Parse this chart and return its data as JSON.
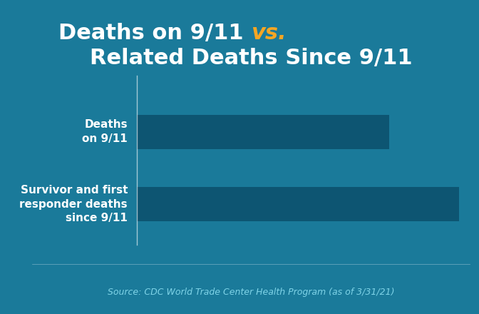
{
  "title_part1": "Deaths on 9/11 ",
  "title_vs": "vs.",
  "title_part2": "Related Deaths Since 9/11",
  "categories": [
    "Deaths\non 9/11",
    "Survivor and first\nresponder deaths\nsince 9/11"
  ],
  "values": [
    2977,
    3800
  ],
  "bar_color": "#0d5572",
  "bg_color": "#1a7a9a",
  "text_color": "#ffffff",
  "vs_color": "#f5a623",
  "source_text": "Source: CDC World Trade Center Health Program (as of 3/31/21)",
  "source_color": "#7fd4e8",
  "title_fontsize": 22,
  "label_fontsize": 11,
  "source_fontsize": 9
}
